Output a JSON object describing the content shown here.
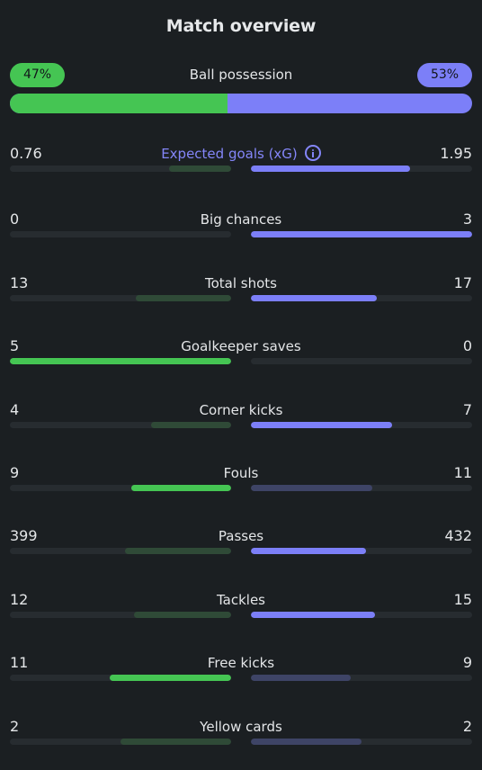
{
  "title": "Match overview",
  "possession": {
    "label": "Ball possession",
    "home": "47%",
    "away": "53%",
    "home_fraction": 0.47
  },
  "stats": [
    {
      "label": "Expected goals (xG)",
      "home": "0.76",
      "away": "1.95",
      "accent": true,
      "info_icon": true,
      "home_frac": 0.28,
      "away_frac": 0.72,
      "home_strong": false,
      "away_strong": true
    },
    {
      "label": "Big chances",
      "home": "0",
      "away": "3",
      "home_frac": 0.0,
      "away_frac": 1.0,
      "home_strong": false,
      "away_strong": true
    },
    {
      "label": "Total shots",
      "home": "13",
      "away": "17",
      "home_frac": 0.43,
      "away_frac": 0.57,
      "home_strong": false,
      "away_strong": true
    },
    {
      "label": "Goalkeeper saves",
      "home": "5",
      "away": "0",
      "home_frac": 1.0,
      "away_frac": 0.0,
      "home_strong": true,
      "away_strong": false
    },
    {
      "label": "Corner kicks",
      "home": "4",
      "away": "7",
      "home_frac": 0.36,
      "away_frac": 0.64,
      "home_strong": false,
      "away_strong": true
    },
    {
      "label": "Fouls",
      "home": "9",
      "away": "11",
      "home_frac": 0.45,
      "away_frac": 0.55,
      "home_strong": true,
      "away_strong": false
    },
    {
      "label": "Passes",
      "home": "399",
      "away": "432",
      "home_frac": 0.48,
      "away_frac": 0.52,
      "home_strong": false,
      "away_strong": true
    },
    {
      "label": "Tackles",
      "home": "12",
      "away": "15",
      "home_frac": 0.44,
      "away_frac": 0.56,
      "home_strong": false,
      "away_strong": true
    },
    {
      "label": "Free kicks",
      "home": "11",
      "away": "9",
      "home_frac": 0.55,
      "away_frac": 0.45,
      "home_strong": true,
      "away_strong": false
    },
    {
      "label": "Yellow cards",
      "home": "2",
      "away": "2",
      "home_frac": 0.5,
      "away_frac": 0.5,
      "home_strong": false,
      "away_strong": false
    }
  ]
}
